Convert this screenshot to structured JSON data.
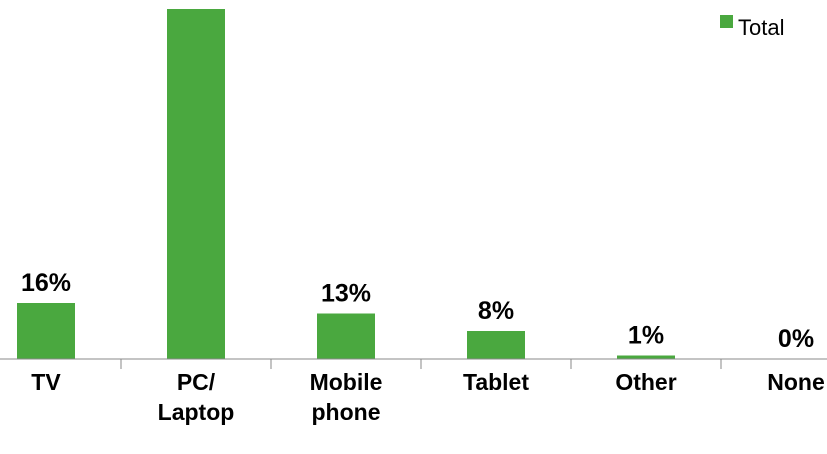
{
  "chart_data": {
    "type": "bar",
    "categories": [
      "TV",
      "PC/\nLaptop",
      "Mobile\nphone",
      "Tablet",
      "Other",
      "None"
    ],
    "series": [
      {
        "name": "Total",
        "color": "#4aa83f",
        "values": [
          16,
          100,
          13,
          8,
          1,
          0
        ],
        "value_labels": [
          "16%",
          null,
          "13%",
          "8%",
          "1%",
          "0%"
        ]
      }
    ],
    "ylim": [
      0,
      100
    ],
    "legend": "top-right"
  }
}
